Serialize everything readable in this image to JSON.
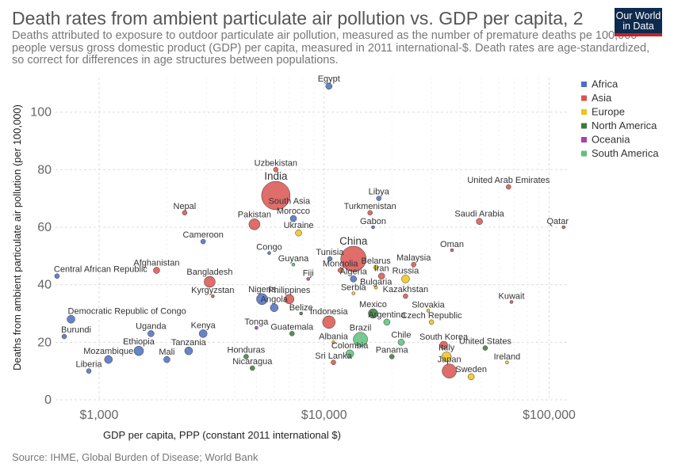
{
  "title": "Death rates from ambient particulate air pollution vs. GDP per capita, 2",
  "subtitle": "Deaths attributed to exposure to outdoor particulate air pollution, measured as the number of premature deaths pe 100,000 people versus gross domestic product (GDP) per capita, measured in 2011 international-$. Death rates are age-standardized, so correct for differences in age structures between populations.",
  "logo": "Our World in Data",
  "source": "Source: IHME, Global Burden of Disease; World Bank",
  "chart_data": {
    "type": "scatter",
    "xlabel": "GDP per capita, PPP (constant 2011 international $)",
    "ylabel": "Deaths from ambient particulate air pollution (per 100,000)",
    "xscale": "log",
    "xlim": [
      640,
      120000
    ],
    "ylim": [
      0,
      112
    ],
    "xticks": [
      {
        "v": 1000,
        "label": "$1,000"
      },
      {
        "v": 10000,
        "label": "$10,000"
      },
      {
        "v": 100000,
        "label": "$100,000"
      }
    ],
    "yticks": [
      0,
      20,
      40,
      60,
      80,
      100
    ],
    "grid": true,
    "legend_position": "right",
    "legend": [
      {
        "name": "Africa",
        "color": "#4c6fc1"
      },
      {
        "name": "Asia",
        "color": "#d9534f"
      },
      {
        "name": "Europe",
        "color": "#f2c21b"
      },
      {
        "name": "North America",
        "color": "#3d7a3d"
      },
      {
        "name": "Oceania",
        "color": "#a346a3"
      },
      {
        "name": "South America",
        "color": "#5fbf7f"
      }
    ],
    "points": [
      {
        "label": "Egypt",
        "x": 10500,
        "y": 109,
        "region": "Africa",
        "r": 4
      },
      {
        "label": "Uzbekistan",
        "x": 6100,
        "y": 80,
        "region": "Asia",
        "r": 3
      },
      {
        "label": "India",
        "x": 6100,
        "y": 71,
        "region": "Asia",
        "r": 18,
        "big": true
      },
      {
        "label": "South Asia",
        "x": 7000,
        "y": 67,
        "region": "Asia",
        "r": 0
      },
      {
        "label": "Nepal",
        "x": 2400,
        "y": 65,
        "region": "Asia",
        "r": 3
      },
      {
        "label": "Pakistan",
        "x": 4900,
        "y": 61,
        "region": "Asia",
        "r": 7
      },
      {
        "label": "Morocco",
        "x": 7300,
        "y": 63,
        "region": "Africa",
        "r": 4
      },
      {
        "label": "Ukraine",
        "x": 7700,
        "y": 58,
        "region": "Europe",
        "r": 4
      },
      {
        "label": "Libya",
        "x": 17500,
        "y": 70,
        "region": "Africa",
        "r": 3
      },
      {
        "label": "Turkmenistan",
        "x": 16000,
        "y": 65,
        "region": "Asia",
        "r": 3
      },
      {
        "label": "Gabon",
        "x": 16500,
        "y": 60,
        "region": "Africa",
        "r": 2
      },
      {
        "label": "United Arab Emirates",
        "x": 66000,
        "y": 74,
        "region": "Asia",
        "r": 3
      },
      {
        "label": "Saudi Arabia",
        "x": 49000,
        "y": 62,
        "region": "Asia",
        "r": 4
      },
      {
        "label": "Qatar",
        "x": 116000,
        "y": 60,
        "region": "Asia",
        "r": 2
      },
      {
        "label": "Cameroon",
        "x": 2900,
        "y": 55,
        "region": "Africa",
        "r": 3
      },
      {
        "label": "Congo",
        "x": 5700,
        "y": 51,
        "region": "Africa",
        "r": 2
      },
      {
        "label": "Guyana",
        "x": 7300,
        "y": 47,
        "region": "South America",
        "r": 2
      },
      {
        "label": "Tunisia",
        "x": 10600,
        "y": 49,
        "region": "Africa",
        "r": 3
      },
      {
        "label": "China",
        "x": 13500,
        "y": 49,
        "region": "Asia",
        "r": 16,
        "big": true
      },
      {
        "label": "Belarus",
        "x": 17000,
        "y": 46,
        "region": "Europe",
        "r": 3
      },
      {
        "label": "Oman",
        "x": 37000,
        "y": 52,
        "region": "Asia",
        "r": 2
      },
      {
        "label": "Malaysia",
        "x": 25000,
        "y": 47,
        "region": "Asia",
        "r": 3
      },
      {
        "label": "Mongolia",
        "x": 11800,
        "y": 45,
        "region": "Asia",
        "r": 3
      },
      {
        "label": "Iran",
        "x": 18000,
        "y": 43,
        "region": "Asia",
        "r": 4
      },
      {
        "label": "Russia",
        "x": 23000,
        "y": 42,
        "region": "Europe",
        "r": 5
      },
      {
        "label": "Algeria",
        "x": 13500,
        "y": 42,
        "region": "Africa",
        "r": 4
      },
      {
        "label": "Central African Republic",
        "x": 650,
        "y": 43,
        "region": "Africa",
        "r": 3
      },
      {
        "label": "Afghanistan",
        "x": 1800,
        "y": 45,
        "region": "Asia",
        "r": 4
      },
      {
        "label": "Fiji",
        "x": 8500,
        "y": 42,
        "region": "Oceania",
        "r": 2
      },
      {
        "label": "Bangladesh",
        "x": 3100,
        "y": 41,
        "region": "Asia",
        "r": 7
      },
      {
        "label": "Bulgaria",
        "x": 17000,
        "y": 39,
        "region": "Europe",
        "r": 2
      },
      {
        "label": "Serbia",
        "x": 13500,
        "y": 37,
        "region": "Europe",
        "r": 2
      },
      {
        "label": "Kazakhstan",
        "x": 23000,
        "y": 36,
        "region": "Asia",
        "r": 3
      },
      {
        "label": "Kuwait",
        "x": 68000,
        "y": 34,
        "region": "Asia",
        "r": 2
      },
      {
        "label": "Nigeria",
        "x": 5300,
        "y": 35,
        "region": "Africa",
        "r": 7
      },
      {
        "label": "Philippines",
        "x": 7000,
        "y": 35,
        "region": "Asia",
        "r": 6
      },
      {
        "label": "Kyrgyzstan",
        "x": 3200,
        "y": 36,
        "region": "Asia",
        "r": 2
      },
      {
        "label": "Slovakia",
        "x": 29000,
        "y": 31,
        "region": "Europe",
        "r": 2
      },
      {
        "label": "Mexico",
        "x": 16500,
        "y": 30,
        "region": "North America",
        "r": 6
      },
      {
        "label": "Angola",
        "x": 6000,
        "y": 32,
        "region": "Africa",
        "r": 5
      },
      {
        "label": "Belize",
        "x": 7900,
        "y": 30,
        "region": "North America",
        "r": 2
      },
      {
        "label": "Indonesia",
        "x": 10500,
        "y": 27,
        "region": "Asia",
        "r": 8
      },
      {
        "label": "Argentina",
        "x": 19000,
        "y": 27,
        "region": "South America",
        "r": 4
      },
      {
        "label": "Czech Republic",
        "x": 30000,
        "y": 27,
        "region": "Europe",
        "r": 3
      },
      {
        "label": "Democratic Republic of Congo",
        "x": 750,
        "y": 28,
        "region": "Africa",
        "r": 5
      },
      {
        "label": "Tonga",
        "x": 5000,
        "y": 25,
        "region": "Oceania",
        "r": 2
      },
      {
        "label": "Uganda",
        "x": 1700,
        "y": 23,
        "region": "Africa",
        "r": 4
      },
      {
        "label": "Kenya",
        "x": 2900,
        "y": 23,
        "region": "Africa",
        "r": 5
      },
      {
        "label": "Guatemala",
        "x": 7200,
        "y": 23,
        "region": "North America",
        "r": 3
      },
      {
        "label": "Burundi",
        "x": 700,
        "y": 22,
        "region": "Africa",
        "r": 3
      },
      {
        "label": "Brazil",
        "x": 14500,
        "y": 21,
        "region": "South America",
        "r": 9
      },
      {
        "label": "Albania",
        "x": 11000,
        "y": 20,
        "region": "Europe",
        "r": 2
      },
      {
        "label": "Chile",
        "x": 22000,
        "y": 20,
        "region": "South America",
        "r": 4
      },
      {
        "label": "South Korea",
        "x": 34000,
        "y": 19,
        "region": "Asia",
        "r": 5
      },
      {
        "label": "United States",
        "x": 52000,
        "y": 18,
        "region": "North America",
        "r": 3
      },
      {
        "label": "Ethiopia",
        "x": 1500,
        "y": 17,
        "region": "Africa",
        "r": 6
      },
      {
        "label": "Tanzania",
        "x": 2500,
        "y": 17,
        "region": "Africa",
        "r": 5
      },
      {
        "label": "Honduras",
        "x": 4500,
        "y": 15,
        "region": "North America",
        "r": 3
      },
      {
        "label": "Colombia",
        "x": 13000,
        "y": 16,
        "region": "South America",
        "r": 5
      },
      {
        "label": "Panama",
        "x": 20000,
        "y": 15,
        "region": "North America",
        "r": 3
      },
      {
        "label": "Italy",
        "x": 35000,
        "y": 15,
        "region": "Europe",
        "r": 6
      },
      {
        "label": "Ireland",
        "x": 65000,
        "y": 13,
        "region": "Europe",
        "r": 2
      },
      {
        "label": "Mozambique",
        "x": 1100,
        "y": 14,
        "region": "Africa",
        "r": 5
      },
      {
        "label": "Mali",
        "x": 2000,
        "y": 14,
        "region": "Africa",
        "r": 4
      },
      {
        "label": "Sri Lanka",
        "x": 11000,
        "y": 13,
        "region": "Asia",
        "r": 3
      },
      {
        "label": "Japan",
        "x": 36000,
        "y": 10,
        "region": "Asia",
        "r": 9
      },
      {
        "label": "Nicaragua",
        "x": 4800,
        "y": 11,
        "region": "North America",
        "r": 3
      },
      {
        "label": "Sweden",
        "x": 45000,
        "y": 8,
        "region": "Europe",
        "r": 4
      },
      {
        "label": "Liberia",
        "x": 900,
        "y": 10,
        "region": "Africa",
        "r": 3
      }
    ]
  }
}
